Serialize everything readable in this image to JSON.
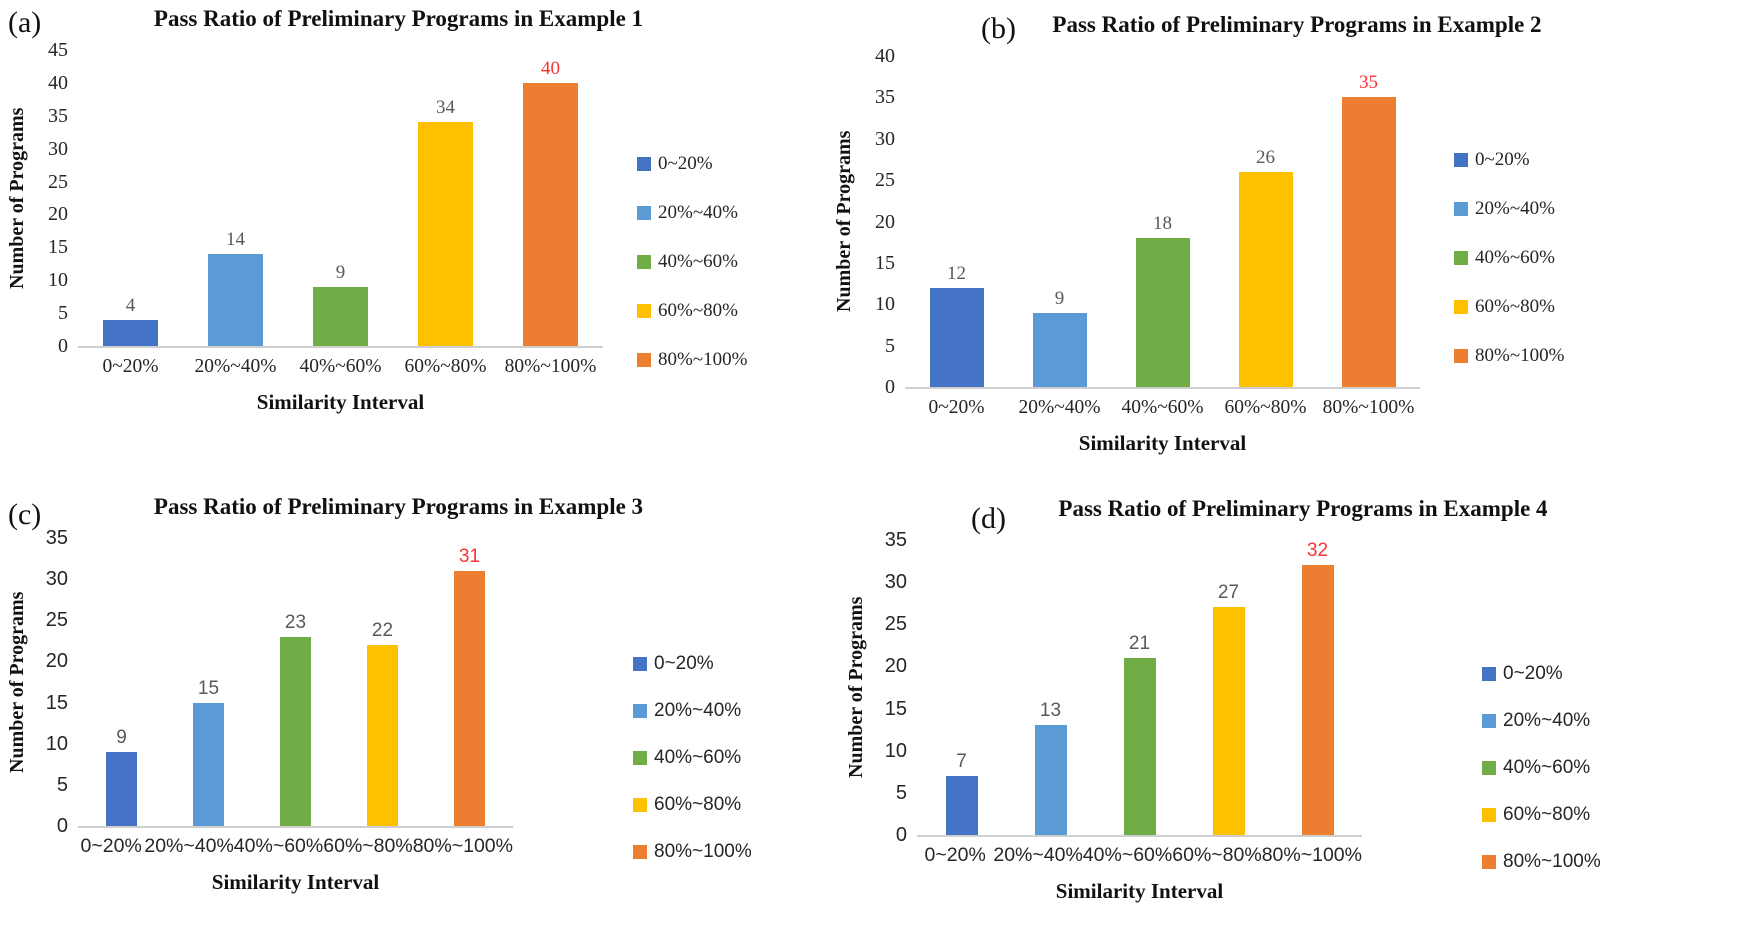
{
  "chart_data": [
    {
      "panel_label": "(a)",
      "type": "bar",
      "title": "Pass Ratio of Preliminary Programs in Example 1",
      "categories": [
        "0~20%",
        "20%~40%",
        "40%~60%",
        "60%~80%",
        "80%~100%"
      ],
      "values": [
        4,
        14,
        9,
        34,
        40
      ],
      "xlabel": "Similarity Interval",
      "ylabel": "Number of Programs",
      "ylim": [
        0,
        45
      ],
      "ytick_step": 5,
      "yticks": [
        0,
        5,
        10,
        15,
        20,
        25,
        30,
        35,
        40,
        45
      ],
      "legend_entries": [
        "0~20%",
        "20%%~40%",
        "40%~60%",
        "60%~80%",
        "80%~100%"
      ],
      "legend_position": "right",
      "grid": false
    },
    {
      "panel_label": "(b)",
      "type": "bar",
      "title": "Pass Ratio of Preliminary Programs in Example 2",
      "categories": [
        "0~20%",
        "20%~40%",
        "40%~60%",
        "60%~80%",
        "80%~100%"
      ],
      "values": [
        12,
        9,
        18,
        26,
        35
      ],
      "xlabel": "Similarity Interval",
      "ylabel": "Number of Programs",
      "ylim": [
        0,
        40
      ],
      "ytick_step": 5,
      "yticks": [
        0,
        5,
        10,
        15,
        20,
        25,
        30,
        35,
        40
      ],
      "legend_entries": [
        "0~20%",
        "20%~40%",
        "40%~60%",
        "60%~80%",
        "80%~100%"
      ],
      "legend_position": "right",
      "grid": false
    },
    {
      "panel_label": "(c)",
      "type": "bar",
      "title": "Pass Ratio of Preliminary Programs in Example 3",
      "categories": [
        "0~20%",
        "20%~40%",
        "40%~60%",
        "60%~80%",
        "80%~100%"
      ],
      "values": [
        9,
        15,
        23,
        22,
        31
      ],
      "xlabel": "Similarity Interval",
      "ylabel": "Number of Programs",
      "ylim": [
        0,
        35
      ],
      "ytick_step": 5,
      "yticks": [
        0,
        5,
        10,
        15,
        20,
        25,
        30,
        35
      ],
      "legend_entries": [
        "0~20%",
        "20%~40%",
        "40%~60%",
        "60%~80%",
        "80%~100%"
      ],
      "legend_position": "right",
      "grid": false
    },
    {
      "panel_label": "(d)",
      "type": "bar",
      "title": "Pass Ratio of Preliminary Programs in Example 4",
      "categories": [
        "0~20%",
        "20%~40%",
        "40%~60%",
        "60%~80%",
        "80%~100%"
      ],
      "values": [
        7,
        13,
        21,
        27,
        32
      ],
      "xlabel": "Similarity Interval",
      "ylabel": "Number of Programs",
      "ylim": [
        0,
        35
      ],
      "ytick_step": 5,
      "yticks": [
        0,
        5,
        10,
        15,
        20,
        25,
        30,
        35
      ],
      "legend_entries": [
        "0~20%",
        "20%~40%",
        "40%~60%",
        "60%~80%",
        "80%~100%"
      ],
      "legend_position": "right",
      "grid": false
    }
  ],
  "colors": {
    "series": [
      "#4472C4",
      "#5B9BD5",
      "#70AD47",
      "#FFC000",
      "#ED7D31"
    ],
    "data_label": "#595959",
    "max_data_label": "#FF3232",
    "axis_line": "#CFCFCF"
  }
}
